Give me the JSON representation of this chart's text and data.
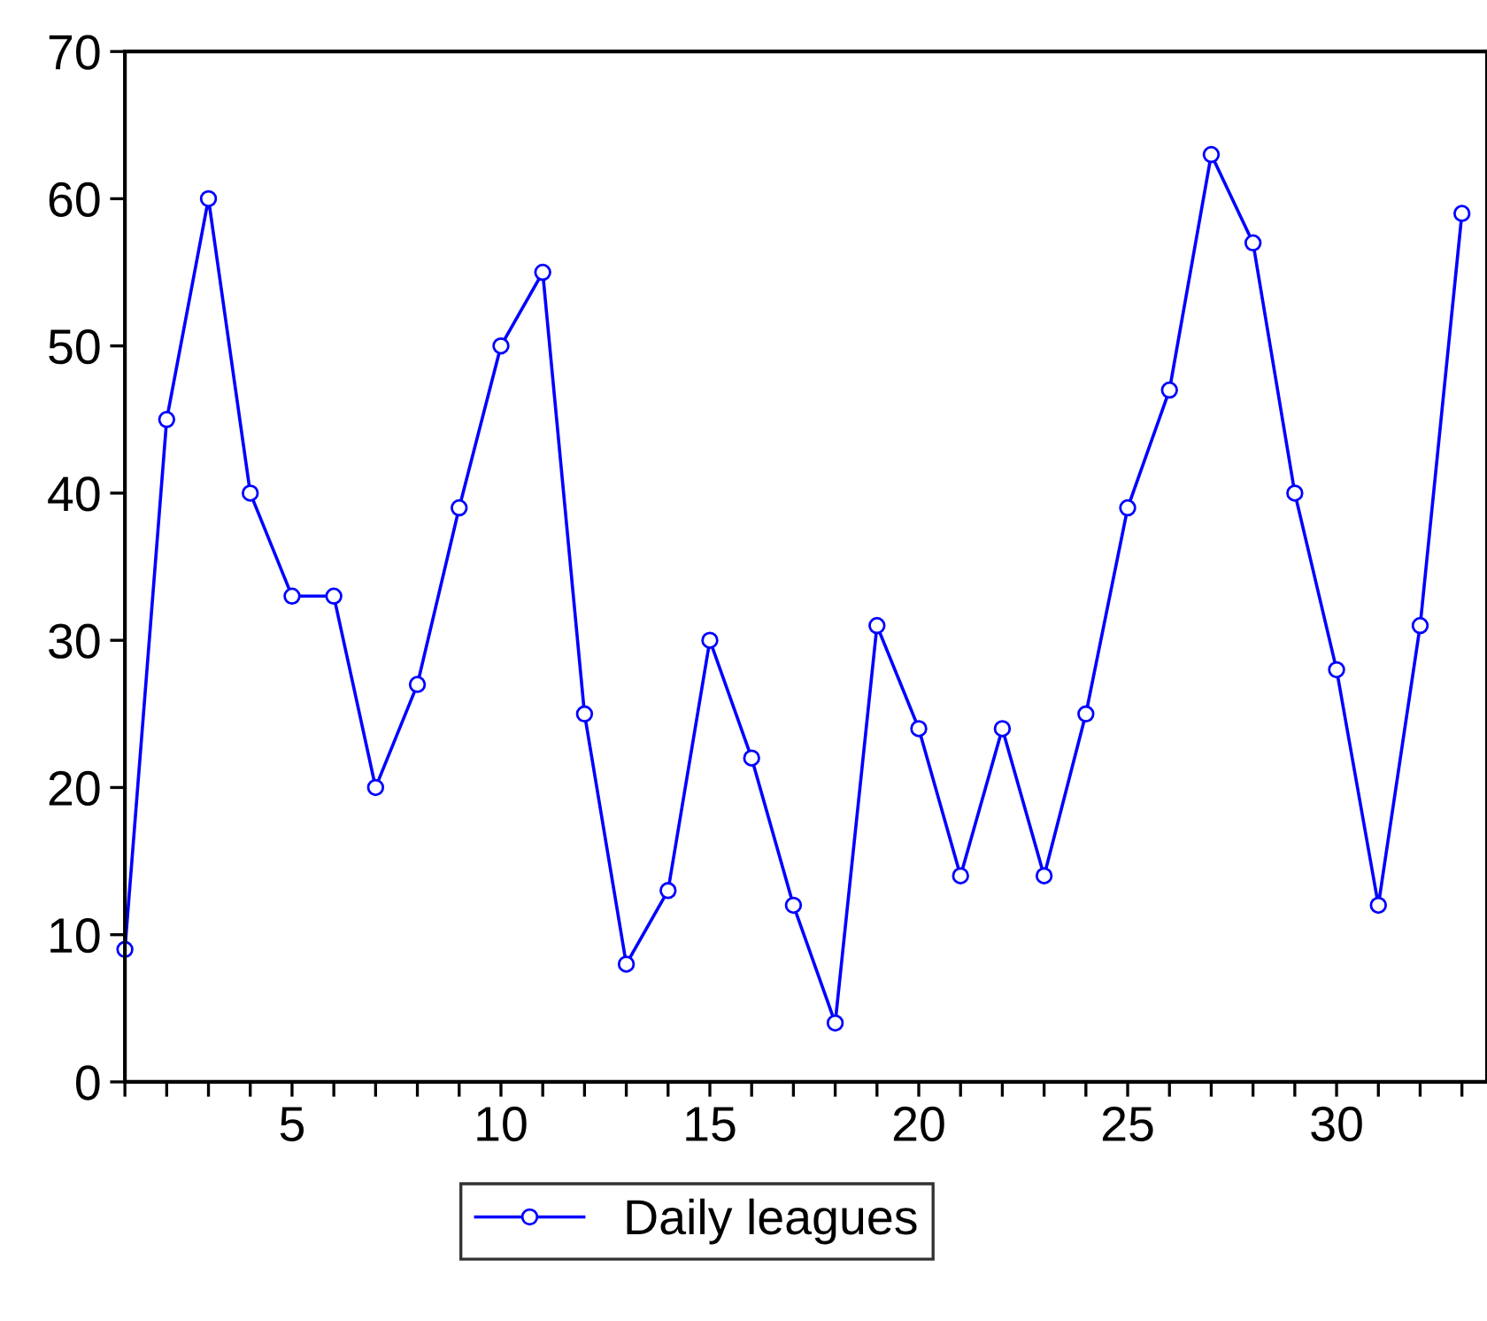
{
  "chart_data": {
    "type": "line",
    "x": [
      1,
      2,
      3,
      4,
      5,
      6,
      7,
      8,
      9,
      10,
      11,
      12,
      13,
      14,
      15,
      16,
      17,
      18,
      19,
      20,
      21,
      22,
      23,
      24,
      25,
      26,
      27,
      28,
      29,
      30,
      31,
      32,
      33
    ],
    "series": [
      {
        "name": "Daily leagues",
        "color": "#0000ff",
        "values": [
          9,
          45,
          60,
          40,
          33,
          33,
          20,
          27,
          39,
          50,
          55,
          25,
          8,
          13,
          30,
          22,
          12,
          4,
          31,
          24,
          14,
          24,
          14,
          25,
          39,
          47,
          63,
          57,
          40,
          28,
          12,
          31,
          59
        ]
      }
    ],
    "xlim": [
      1,
      33.6
    ],
    "xticks": [
      {
        "value": 1,
        "label": null
      },
      {
        "value": 2,
        "label": null
      },
      {
        "value": 3,
        "label": null
      },
      {
        "value": 4,
        "label": null
      },
      5,
      {
        "value": 6,
        "label": null
      },
      {
        "value": 7,
        "label": null
      },
      {
        "value": 8,
        "label": null
      },
      {
        "value": 9,
        "label": null
      },
      10,
      {
        "value": 11,
        "label": null
      },
      {
        "value": 12,
        "label": null
      },
      {
        "value": 13,
        "label": null
      },
      {
        "value": 14,
        "label": null
      },
      15,
      {
        "value": 16,
        "label": null
      },
      {
        "value": 17,
        "label": null
      },
      {
        "value": 18,
        "label": null
      },
      {
        "value": 19,
        "label": null
      },
      20,
      {
        "value": 21,
        "label": null
      },
      {
        "value": 22,
        "label": null
      },
      {
        "value": 23,
        "label": null
      },
      {
        "value": 24,
        "label": null
      },
      25,
      {
        "value": 26,
        "label": null
      },
      {
        "value": 27,
        "label": null
      },
      {
        "value": 28,
        "label": null
      },
      {
        "value": 29,
        "label": null
      },
      30,
      {
        "value": 31,
        "label": null
      },
      {
        "value": 32,
        "label": null
      },
      {
        "value": 33,
        "label": null
      }
    ],
    "ylim": [
      0,
      70
    ],
    "yticks": [
      0,
      10,
      20,
      30,
      40,
      50,
      60,
      70
    ],
    "grid": false,
    "legend": "bottom",
    "marker": "circle",
    "line_style": "solid"
  }
}
